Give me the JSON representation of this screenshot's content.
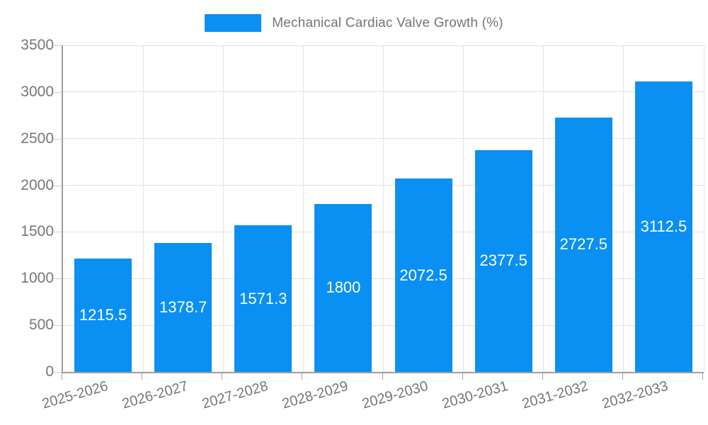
{
  "chart_data": {
    "type": "bar",
    "title": "Mechanical Cardiac Valve Growth (%)",
    "categories": [
      "2025-2026",
      "2026-2027",
      "2027-2028",
      "2028-2029",
      "2029-2030",
      "2030-2031",
      "2031-2032",
      "2032-2033"
    ],
    "values": [
      1215.5,
      1378.7,
      1571.3,
      1800,
      2072.5,
      2377.5,
      2727.5,
      3112.5
    ],
    "xlabel": "",
    "ylabel": "",
    "ylim": [
      0,
      3500
    ],
    "ytick_step": 500,
    "ytick_labels": [
      "0",
      "500",
      "1000",
      "1500",
      "2000",
      "2500",
      "3000",
      "3500"
    ],
    "grid": true,
    "legend_position": "top-center",
    "bar_value_label_position": "inside-middle",
    "colors": {
      "bar": "#0a90f2",
      "bar_value_text": "#ffffff",
      "axis": "#9e9e9e",
      "gridline": "#e0e0e0",
      "tick_text": "#757575",
      "legend_text": "#757575",
      "background": "#ffffff"
    }
  }
}
